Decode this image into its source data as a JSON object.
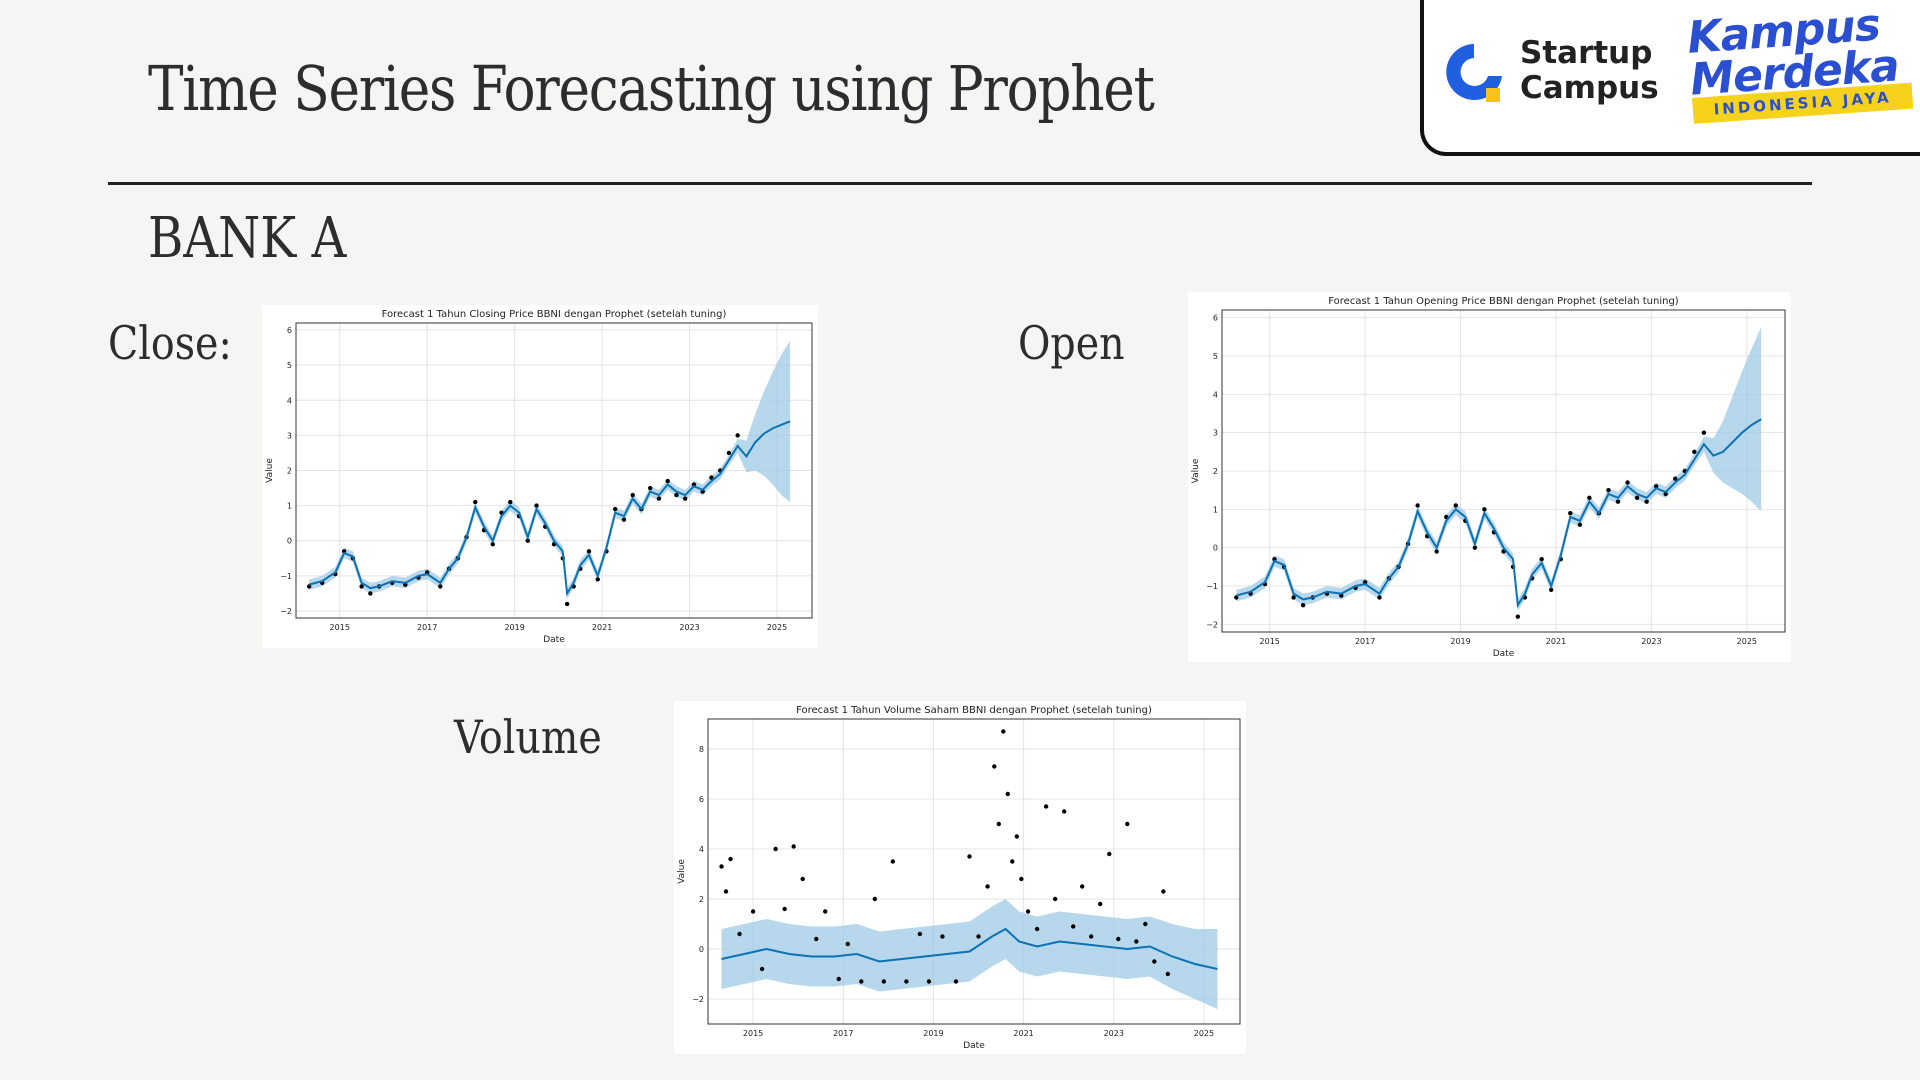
{
  "slide": {
    "title": "Time Series Forecasting using Prophet",
    "section": "BANK A",
    "labels": {
      "close": "Close:",
      "open": "Open",
      "volume": "Volume"
    }
  },
  "logos": {
    "startup_campus": [
      "Startup",
      "Campus"
    ],
    "kampus_merdeka": [
      "Kampus",
      "Merdeka"
    ],
    "kampus_merdeka_tagline": "INDONESIA JAYA",
    "colors": {
      "sc_blue": "#1f5fe0",
      "sc_yellow": "#f6c21b",
      "km_blue": "#2a4fd0",
      "km_yellow": "#f7d21c"
    }
  },
  "colors": {
    "forecast_line": "#0b72b4",
    "interval": "#9fc9e6",
    "points": "#000000",
    "grid": "#e4e4e4"
  },
  "chart_data": [
    {
      "id": "close",
      "type": "line",
      "title": "Forecast 1 Tahun Closing Price BBNI dengan Prophet (setelah tuning)",
      "xlabel": "Date",
      "ylabel": "Value",
      "xlim": [
        2014.0,
        2025.8
      ],
      "ylim": [
        -2.2,
        6.2
      ],
      "xticks": [
        2015,
        2017,
        2019,
        2021,
        2023,
        2025
      ],
      "yticks": [
        -2,
        -1,
        0,
        1,
        2,
        3,
        4,
        5,
        6
      ],
      "grid": true,
      "series": [
        {
          "role": "forecast",
          "x": [
            2014.3,
            2014.6,
            2014.9,
            2015.1,
            2015.3,
            2015.5,
            2015.7,
            2015.9,
            2016.2,
            2016.5,
            2016.8,
            2017.0,
            2017.3,
            2017.5,
            2017.7,
            2017.9,
            2018.1,
            2018.3,
            2018.5,
            2018.7,
            2018.9,
            2019.1,
            2019.3,
            2019.5,
            2019.7,
            2019.9,
            2020.1,
            2020.2,
            2020.35,
            2020.5,
            2020.7,
            2020.9,
            2021.1,
            2021.3,
            2021.5,
            2021.7,
            2021.9,
            2022.1,
            2022.3,
            2022.5,
            2022.7,
            2022.9,
            2023.1,
            2023.3,
            2023.5,
            2023.7,
            2023.9,
            2024.1,
            2024.3,
            2024.5,
            2024.7,
            2024.9,
            2025.1,
            2025.3
          ],
          "y": [
            -1.25,
            -1.15,
            -0.9,
            -0.35,
            -0.45,
            -1.2,
            -1.35,
            -1.3,
            -1.15,
            -1.2,
            -1.0,
            -0.95,
            -1.2,
            -0.8,
            -0.5,
            0.1,
            0.95,
            0.4,
            0.0,
            0.7,
            1.0,
            0.8,
            0.1,
            0.9,
            0.5,
            0.0,
            -0.3,
            -1.5,
            -1.2,
            -0.7,
            -0.4,
            -1.0,
            -0.2,
            0.8,
            0.7,
            1.2,
            0.9,
            1.4,
            1.3,
            1.6,
            1.4,
            1.3,
            1.55,
            1.45,
            1.7,
            1.9,
            2.3,
            2.7,
            2.4,
            2.8,
            3.05,
            3.2,
            3.3,
            3.4
          ],
          "interval_half_width": [
            0.15,
            0.15,
            0.15,
            0.15,
            0.15,
            0.15,
            0.15,
            0.15,
            0.15,
            0.15,
            0.15,
            0.15,
            0.15,
            0.15,
            0.15,
            0.15,
            0.15,
            0.15,
            0.15,
            0.15,
            0.15,
            0.15,
            0.15,
            0.15,
            0.15,
            0.15,
            0.15,
            0.15,
            0.15,
            0.15,
            0.15,
            0.15,
            0.15,
            0.15,
            0.15,
            0.15,
            0.15,
            0.15,
            0.15,
            0.15,
            0.15,
            0.15,
            0.15,
            0.15,
            0.15,
            0.15,
            0.15,
            0.2,
            0.45,
            0.8,
            1.2,
            1.6,
            2.0,
            2.3
          ]
        },
        {
          "role": "actual",
          "x": [
            2014.3,
            2014.6,
            2014.9,
            2015.1,
            2015.3,
            2015.5,
            2015.7,
            2015.9,
            2016.2,
            2016.5,
            2016.8,
            2017.0,
            2017.3,
            2017.5,
            2017.7,
            2017.9,
            2018.1,
            2018.3,
            2018.5,
            2018.7,
            2018.9,
            2019.1,
            2019.3,
            2019.5,
            2019.7,
            2019.9,
            2020.1,
            2020.2,
            2020.35,
            2020.5,
            2020.7,
            2020.9,
            2021.1,
            2021.3,
            2021.5,
            2021.7,
            2021.9,
            2022.1,
            2022.3,
            2022.5,
            2022.7,
            2022.9,
            2023.1,
            2023.3,
            2023.5,
            2023.7,
            2023.9,
            2024.1
          ],
          "y": [
            -1.3,
            -1.2,
            -0.95,
            -0.3,
            -0.5,
            -1.3,
            -1.5,
            -1.3,
            -1.2,
            -1.25,
            -1.05,
            -0.9,
            -1.3,
            -0.8,
            -0.5,
            0.1,
            1.1,
            0.3,
            -0.1,
            0.8,
            1.1,
            0.7,
            0.0,
            1.0,
            0.4,
            -0.1,
            -0.5,
            -1.8,
            -1.3,
            -0.8,
            -0.3,
            -1.1,
            -0.3,
            0.9,
            0.6,
            1.3,
            0.9,
            1.5,
            1.2,
            1.7,
            1.3,
            1.2,
            1.6,
            1.4,
            1.8,
            2.0,
            2.5,
            3.0
          ]
        }
      ]
    },
    {
      "id": "open",
      "type": "line",
      "title": "Forecast 1 Tahun Opening Price BBNI dengan Prophet (setelah tuning)",
      "xlabel": "Date",
      "ylabel": "Value",
      "xlim": [
        2014.0,
        2025.8
      ],
      "ylim": [
        -2.2,
        6.2
      ],
      "xticks": [
        2015,
        2017,
        2019,
        2021,
        2023,
        2025
      ],
      "yticks": [
        -2,
        -1,
        0,
        1,
        2,
        3,
        4,
        5,
        6
      ],
      "grid": true,
      "series": [
        {
          "role": "forecast",
          "x": [
            2014.3,
            2014.6,
            2014.9,
            2015.1,
            2015.3,
            2015.5,
            2015.7,
            2015.9,
            2016.2,
            2016.5,
            2016.8,
            2017.0,
            2017.3,
            2017.5,
            2017.7,
            2017.9,
            2018.1,
            2018.3,
            2018.5,
            2018.7,
            2018.9,
            2019.1,
            2019.3,
            2019.5,
            2019.7,
            2019.9,
            2020.1,
            2020.2,
            2020.35,
            2020.5,
            2020.7,
            2020.9,
            2021.1,
            2021.3,
            2021.5,
            2021.7,
            2021.9,
            2022.1,
            2022.3,
            2022.5,
            2022.7,
            2022.9,
            2023.1,
            2023.3,
            2023.5,
            2023.7,
            2023.9,
            2024.1,
            2024.3,
            2024.5,
            2024.7,
            2024.9,
            2025.1,
            2025.3
          ],
          "y": [
            -1.25,
            -1.15,
            -0.9,
            -0.35,
            -0.45,
            -1.2,
            -1.35,
            -1.3,
            -1.15,
            -1.2,
            -1.0,
            -0.95,
            -1.2,
            -0.8,
            -0.5,
            0.1,
            0.95,
            0.4,
            0.0,
            0.7,
            1.0,
            0.8,
            0.1,
            0.9,
            0.5,
            0.0,
            -0.3,
            -1.5,
            -1.2,
            -0.7,
            -0.4,
            -1.0,
            -0.2,
            0.8,
            0.7,
            1.2,
            0.9,
            1.4,
            1.3,
            1.6,
            1.4,
            1.3,
            1.55,
            1.45,
            1.7,
            1.9,
            2.3,
            2.7,
            2.4,
            2.5,
            2.75,
            3.0,
            3.2,
            3.35
          ],
          "interval_half_width": [
            0.15,
            0.15,
            0.15,
            0.15,
            0.15,
            0.15,
            0.15,
            0.15,
            0.15,
            0.15,
            0.15,
            0.15,
            0.15,
            0.15,
            0.15,
            0.15,
            0.15,
            0.15,
            0.15,
            0.15,
            0.15,
            0.15,
            0.15,
            0.15,
            0.15,
            0.15,
            0.15,
            0.15,
            0.15,
            0.15,
            0.15,
            0.15,
            0.15,
            0.15,
            0.15,
            0.15,
            0.15,
            0.15,
            0.15,
            0.15,
            0.15,
            0.15,
            0.15,
            0.15,
            0.15,
            0.15,
            0.15,
            0.2,
            0.45,
            0.8,
            1.2,
            1.6,
            2.0,
            2.4
          ]
        },
        {
          "role": "actual",
          "x": [
            2014.3,
            2014.6,
            2014.9,
            2015.1,
            2015.3,
            2015.5,
            2015.7,
            2015.9,
            2016.2,
            2016.5,
            2016.8,
            2017.0,
            2017.3,
            2017.5,
            2017.7,
            2017.9,
            2018.1,
            2018.3,
            2018.5,
            2018.7,
            2018.9,
            2019.1,
            2019.3,
            2019.5,
            2019.7,
            2019.9,
            2020.1,
            2020.2,
            2020.35,
            2020.5,
            2020.7,
            2020.9,
            2021.1,
            2021.3,
            2021.5,
            2021.7,
            2021.9,
            2022.1,
            2022.3,
            2022.5,
            2022.7,
            2022.9,
            2023.1,
            2023.3,
            2023.5,
            2023.7,
            2023.9,
            2024.1
          ],
          "y": [
            -1.3,
            -1.2,
            -0.95,
            -0.3,
            -0.5,
            -1.3,
            -1.5,
            -1.3,
            -1.2,
            -1.25,
            -1.05,
            -0.9,
            -1.3,
            -0.8,
            -0.5,
            0.1,
            1.1,
            0.3,
            -0.1,
            0.8,
            1.1,
            0.7,
            0.0,
            1.0,
            0.4,
            -0.1,
            -0.5,
            -1.8,
            -1.3,
            -0.8,
            -0.3,
            -1.1,
            -0.3,
            0.9,
            0.6,
            1.3,
            0.9,
            1.5,
            1.2,
            1.7,
            1.3,
            1.2,
            1.6,
            1.4,
            1.8,
            2.0,
            2.5,
            3.0
          ]
        }
      ]
    },
    {
      "id": "volume",
      "type": "line",
      "title": "Forecast 1 Tahun Volume Saham BBNI dengan Prophet (setelah tuning)",
      "xlabel": "Date",
      "ylabel": "Value",
      "xlim": [
        2014.0,
        2025.8
      ],
      "ylim": [
        -3.0,
        9.2
      ],
      "xticks": [
        2015,
        2017,
        2019,
        2021,
        2023,
        2025
      ],
      "yticks": [
        -2,
        0,
        2,
        4,
        6,
        8
      ],
      "grid": true,
      "series": [
        {
          "role": "forecast",
          "x": [
            2014.3,
            2014.8,
            2015.3,
            2015.8,
            2016.3,
            2016.8,
            2017.3,
            2017.8,
            2018.3,
            2018.8,
            2019.3,
            2019.8,
            2020.3,
            2020.6,
            2020.9,
            2021.3,
            2021.8,
            2022.3,
            2022.8,
            2023.3,
            2023.8,
            2024.3,
            2024.8,
            2025.3
          ],
          "y": [
            -0.4,
            -0.2,
            0.0,
            -0.2,
            -0.3,
            -0.3,
            -0.2,
            -0.5,
            -0.4,
            -0.3,
            -0.2,
            -0.1,
            0.5,
            0.8,
            0.3,
            0.1,
            0.3,
            0.2,
            0.1,
            0.0,
            0.1,
            -0.3,
            -0.6,
            -0.8
          ],
          "interval_half_width": [
            1.2,
            1.2,
            1.2,
            1.2,
            1.2,
            1.2,
            1.2,
            1.2,
            1.2,
            1.2,
            1.2,
            1.2,
            1.2,
            1.2,
            1.2,
            1.2,
            1.2,
            1.2,
            1.2,
            1.2,
            1.2,
            1.3,
            1.4,
            1.6
          ]
        },
        {
          "role": "actual",
          "x": [
            2014.3,
            2014.4,
            2014.5,
            2014.7,
            2015.0,
            2015.2,
            2015.5,
            2015.7,
            2015.9,
            2016.1,
            2016.4,
            2016.6,
            2016.9,
            2017.1,
            2017.4,
            2017.7,
            2017.9,
            2018.1,
            2018.4,
            2018.7,
            2018.9,
            2019.2,
            2019.5,
            2019.8,
            2020.0,
            2020.2,
            2020.35,
            2020.45,
            2020.55,
            2020.65,
            2020.75,
            2020.85,
            2020.95,
            2021.1,
            2021.3,
            2021.5,
            2021.7,
            2021.9,
            2022.1,
            2022.3,
            2022.5,
            2022.7,
            2022.9,
            2023.1,
            2023.3,
            2023.5,
            2023.7,
            2023.9,
            2024.1,
            2024.2
          ],
          "y": [
            3.3,
            2.3,
            3.6,
            0.6,
            1.5,
            -0.8,
            4.0,
            1.6,
            4.1,
            2.8,
            0.4,
            1.5,
            -1.2,
            0.2,
            -1.3,
            2.0,
            -1.3,
            3.5,
            -1.3,
            0.6,
            -1.3,
            0.5,
            -1.3,
            3.7,
            0.5,
            2.5,
            7.3,
            5.0,
            8.7,
            6.2,
            3.5,
            4.5,
            2.8,
            1.5,
            0.8,
            5.7,
            2.0,
            5.5,
            0.9,
            2.5,
            0.5,
            1.8,
            3.8,
            0.4,
            5.0,
            0.3,
            1.0,
            -0.5,
            2.3,
            -1.0
          ]
        }
      ]
    }
  ]
}
